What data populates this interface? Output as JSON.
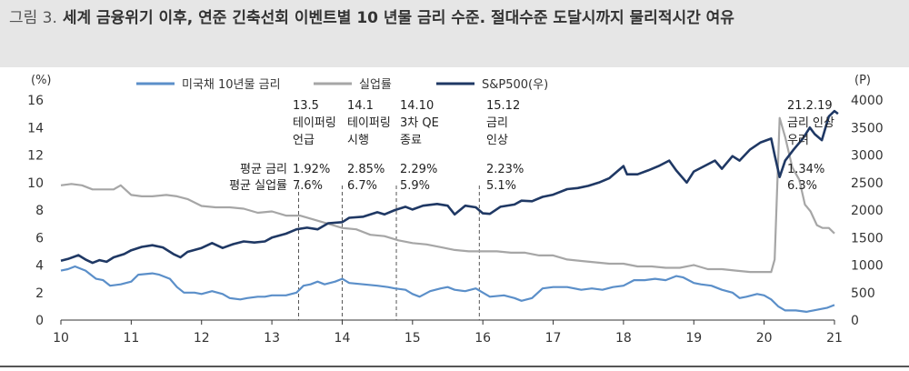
{
  "header": {
    "figure_label": "그림 3.",
    "title": "세계 금융위기 이후, 연준 긴축선회 이벤트별 10 년물 금리 수준. 절대수준 도달시까지 물리적시간 여유"
  },
  "chart_data": {
    "type": "line",
    "title": "",
    "left_axis": {
      "unit": "(%)",
      "min": 0,
      "max": 16,
      "ticks": [
        0,
        2,
        4,
        6,
        8,
        10,
        12,
        14,
        16
      ]
    },
    "right_axis": {
      "unit": "(P)",
      "min": 0,
      "max": 4000,
      "ticks": [
        0,
        500,
        1000,
        1500,
        2000,
        2500,
        3000,
        3500,
        4000
      ]
    },
    "x_axis": {
      "min": 2010,
      "max": 2021,
      "tick_labels": [
        "10",
        "11",
        "12",
        "13",
        "14",
        "15",
        "16",
        "17",
        "18",
        "19",
        "20",
        "21"
      ]
    },
    "legend_position": "top",
    "series": [
      {
        "name": "미국채 10년물 금리",
        "axis": "left",
        "color": "#5b8fc9",
        "points": [
          [
            2010.0,
            3.6
          ],
          [
            2010.1,
            3.7
          ],
          [
            2010.2,
            3.9
          ],
          [
            2010.35,
            3.6
          ],
          [
            2010.5,
            3.0
          ],
          [
            2010.6,
            2.9
          ],
          [
            2010.7,
            2.5
          ],
          [
            2010.85,
            2.6
          ],
          [
            2011.0,
            2.8
          ],
          [
            2011.1,
            3.3
          ],
          [
            2011.3,
            3.4
          ],
          [
            2011.4,
            3.3
          ],
          [
            2011.55,
            3.0
          ],
          [
            2011.65,
            2.4
          ],
          [
            2011.75,
            2.0
          ],
          [
            2011.9,
            2.0
          ],
          [
            2012.0,
            1.9
          ],
          [
            2012.15,
            2.1
          ],
          [
            2012.3,
            1.9
          ],
          [
            2012.4,
            1.6
          ],
          [
            2012.55,
            1.5
          ],
          [
            2012.65,
            1.6
          ],
          [
            2012.8,
            1.7
          ],
          [
            2012.9,
            1.7
          ],
          [
            2013.0,
            1.8
          ],
          [
            2013.2,
            1.8
          ],
          [
            2013.35,
            2.0
          ],
          [
            2013.45,
            2.5
          ],
          [
            2013.55,
            2.6
          ],
          [
            2013.65,
            2.8
          ],
          [
            2013.75,
            2.6
          ],
          [
            2013.9,
            2.8
          ],
          [
            2014.0,
            3.0
          ],
          [
            2014.1,
            2.7
          ],
          [
            2014.3,
            2.6
          ],
          [
            2014.5,
            2.5
          ],
          [
            2014.65,
            2.4
          ],
          [
            2014.75,
            2.3
          ],
          [
            2014.9,
            2.2
          ],
          [
            2015.0,
            1.9
          ],
          [
            2015.1,
            1.7
          ],
          [
            2015.25,
            2.1
          ],
          [
            2015.4,
            2.3
          ],
          [
            2015.5,
            2.4
          ],
          [
            2015.6,
            2.2
          ],
          [
            2015.75,
            2.1
          ],
          [
            2015.9,
            2.3
          ],
          [
            2016.0,
            2.0
          ],
          [
            2016.1,
            1.7
          ],
          [
            2016.3,
            1.8
          ],
          [
            2016.45,
            1.6
          ],
          [
            2016.55,
            1.4
          ],
          [
            2016.7,
            1.6
          ],
          [
            2016.85,
            2.3
          ],
          [
            2017.0,
            2.4
          ],
          [
            2017.2,
            2.4
          ],
          [
            2017.4,
            2.2
          ],
          [
            2017.55,
            2.3
          ],
          [
            2017.7,
            2.2
          ],
          [
            2017.85,
            2.4
          ],
          [
            2018.0,
            2.5
          ],
          [
            2018.15,
            2.9
          ],
          [
            2018.3,
            2.9
          ],
          [
            2018.45,
            3.0
          ],
          [
            2018.6,
            2.9
          ],
          [
            2018.75,
            3.2
          ],
          [
            2018.85,
            3.1
          ],
          [
            2019.0,
            2.7
          ],
          [
            2019.1,
            2.6
          ],
          [
            2019.25,
            2.5
          ],
          [
            2019.4,
            2.2
          ],
          [
            2019.55,
            2.0
          ],
          [
            2019.65,
            1.6
          ],
          [
            2019.75,
            1.7
          ],
          [
            2019.9,
            1.9
          ],
          [
            2020.0,
            1.8
          ],
          [
            2020.1,
            1.5
          ],
          [
            2020.2,
            1.0
          ],
          [
            2020.3,
            0.7
          ],
          [
            2020.45,
            0.7
          ],
          [
            2020.6,
            0.6
          ],
          [
            2020.7,
            0.7
          ],
          [
            2020.8,
            0.8
          ],
          [
            2020.9,
            0.9
          ],
          [
            2021.0,
            1.1
          ]
        ]
      },
      {
        "name": "실업률",
        "axis": "left",
        "color": "#a6a6a6",
        "points": [
          [
            2010.0,
            9.8
          ],
          [
            2010.15,
            9.9
          ],
          [
            2010.3,
            9.8
          ],
          [
            2010.45,
            9.5
          ],
          [
            2010.6,
            9.5
          ],
          [
            2010.75,
            9.5
          ],
          [
            2010.85,
            9.8
          ],
          [
            2011.0,
            9.1
          ],
          [
            2011.15,
            9.0
          ],
          [
            2011.3,
            9.0
          ],
          [
            2011.5,
            9.1
          ],
          [
            2011.65,
            9.0
          ],
          [
            2011.8,
            8.8
          ],
          [
            2012.0,
            8.3
          ],
          [
            2012.2,
            8.2
          ],
          [
            2012.4,
            8.2
          ],
          [
            2012.6,
            8.1
          ],
          [
            2012.8,
            7.8
          ],
          [
            2013.0,
            7.9
          ],
          [
            2013.2,
            7.6
          ],
          [
            2013.4,
            7.6
          ],
          [
            2013.6,
            7.3
          ],
          [
            2013.8,
            7.0
          ],
          [
            2014.0,
            6.7
          ],
          [
            2014.2,
            6.6
          ],
          [
            2014.4,
            6.2
          ],
          [
            2014.6,
            6.1
          ],
          [
            2014.8,
            5.8
          ],
          [
            2015.0,
            5.6
          ],
          [
            2015.2,
            5.5
          ],
          [
            2015.4,
            5.3
          ],
          [
            2015.6,
            5.1
          ],
          [
            2015.8,
            5.0
          ],
          [
            2016.0,
            5.0
          ],
          [
            2016.2,
            5.0
          ],
          [
            2016.4,
            4.9
          ],
          [
            2016.6,
            4.9
          ],
          [
            2016.8,
            4.7
          ],
          [
            2017.0,
            4.7
          ],
          [
            2017.2,
            4.4
          ],
          [
            2017.4,
            4.3
          ],
          [
            2017.6,
            4.2
          ],
          [
            2017.8,
            4.1
          ],
          [
            2018.0,
            4.1
          ],
          [
            2018.2,
            3.9
          ],
          [
            2018.4,
            3.9
          ],
          [
            2018.6,
            3.8
          ],
          [
            2018.8,
            3.8
          ],
          [
            2019.0,
            4.0
          ],
          [
            2019.2,
            3.7
          ],
          [
            2019.4,
            3.7
          ],
          [
            2019.6,
            3.6
          ],
          [
            2019.8,
            3.5
          ],
          [
            2020.0,
            3.5
          ],
          [
            2020.1,
            3.5
          ],
          [
            2020.15,
            4.4
          ],
          [
            2020.22,
            14.7
          ],
          [
            2020.3,
            13.3
          ],
          [
            2020.4,
            11.1
          ],
          [
            2020.5,
            10.2
          ],
          [
            2020.58,
            8.4
          ],
          [
            2020.66,
            7.9
          ],
          [
            2020.75,
            6.9
          ],
          [
            2020.83,
            6.7
          ],
          [
            2020.92,
            6.7
          ],
          [
            2021.0,
            6.3
          ]
        ]
      },
      {
        "name": "S&P500(우)",
        "axis": "right",
        "color": "#1f3864",
        "points": [
          [
            2010.0,
            1080
          ],
          [
            2010.1,
            1110
          ],
          [
            2010.25,
            1180
          ],
          [
            2010.35,
            1100
          ],
          [
            2010.45,
            1040
          ],
          [
            2010.55,
            1090
          ],
          [
            2010.65,
            1060
          ],
          [
            2010.75,
            1140
          ],
          [
            2010.9,
            1200
          ],
          [
            2011.0,
            1270
          ],
          [
            2011.15,
            1330
          ],
          [
            2011.3,
            1360
          ],
          [
            2011.45,
            1320
          ],
          [
            2011.6,
            1200
          ],
          [
            2011.7,
            1140
          ],
          [
            2011.8,
            1240
          ],
          [
            2012.0,
            1310
          ],
          [
            2012.15,
            1400
          ],
          [
            2012.3,
            1310
          ],
          [
            2012.45,
            1380
          ],
          [
            2012.6,
            1430
          ],
          [
            2012.75,
            1410
          ],
          [
            2012.9,
            1430
          ],
          [
            2013.0,
            1500
          ],
          [
            2013.2,
            1570
          ],
          [
            2013.35,
            1650
          ],
          [
            2013.5,
            1680
          ],
          [
            2013.65,
            1650
          ],
          [
            2013.8,
            1760
          ],
          [
            2014.0,
            1780
          ],
          [
            2014.1,
            1860
          ],
          [
            2014.3,
            1880
          ],
          [
            2014.5,
            1960
          ],
          [
            2014.6,
            1920
          ],
          [
            2014.75,
            2000
          ],
          [
            2014.9,
            2060
          ],
          [
            2015.0,
            2010
          ],
          [
            2015.15,
            2080
          ],
          [
            2015.35,
            2110
          ],
          [
            2015.5,
            2080
          ],
          [
            2015.6,
            1920
          ],
          [
            2015.75,
            2080
          ],
          [
            2015.9,
            2050
          ],
          [
            2016.0,
            1940
          ],
          [
            2016.1,
            1930
          ],
          [
            2016.25,
            2060
          ],
          [
            2016.45,
            2100
          ],
          [
            2016.55,
            2170
          ],
          [
            2016.7,
            2160
          ],
          [
            2016.85,
            2240
          ],
          [
            2017.0,
            2280
          ],
          [
            2017.2,
            2380
          ],
          [
            2017.35,
            2400
          ],
          [
            2017.5,
            2440
          ],
          [
            2017.65,
            2500
          ],
          [
            2017.8,
            2580
          ],
          [
            2018.0,
            2800
          ],
          [
            2018.05,
            2650
          ],
          [
            2018.2,
            2650
          ],
          [
            2018.35,
            2720
          ],
          [
            2018.5,
            2800
          ],
          [
            2018.65,
            2900
          ],
          [
            2018.75,
            2720
          ],
          [
            2018.9,
            2500
          ],
          [
            2019.0,
            2700
          ],
          [
            2019.15,
            2800
          ],
          [
            2019.3,
            2900
          ],
          [
            2019.4,
            2750
          ],
          [
            2019.55,
            2980
          ],
          [
            2019.65,
            2900
          ],
          [
            2019.8,
            3100
          ],
          [
            2019.95,
            3230
          ],
          [
            2020.1,
            3300
          ],
          [
            2020.15,
            3000
          ],
          [
            2020.22,
            2600
          ],
          [
            2020.3,
            2900
          ],
          [
            2020.42,
            3100
          ],
          [
            2020.55,
            3300
          ],
          [
            2020.65,
            3500
          ],
          [
            2020.72,
            3380
          ],
          [
            2020.82,
            3270
          ],
          [
            2020.92,
            3700
          ],
          [
            2021.0,
            3800
          ],
          [
            2021.05,
            3750
          ]
        ]
      }
    ],
    "events": [
      {
        "x": 2013.38,
        "date": "13.5",
        "label_lines": [
          "테이퍼링",
          "언급"
        ],
        "avg_rate": "1.92%",
        "avg_unemp": "7.6%"
      },
      {
        "x": 2014.0,
        "date": "14.1",
        "label_lines": [
          "테이퍼링",
          "시행"
        ],
        "avg_rate": "2.85%",
        "avg_unemp": "6.7%"
      },
      {
        "x": 2014.77,
        "date": "14.10",
        "label_lines": [
          "3차 QE",
          "종료"
        ],
        "avg_rate": "2.29%",
        "avg_unemp": "5.9%"
      },
      {
        "x": 2015.95,
        "date": "15.12",
        "label_lines": [
          "금리",
          "인상"
        ],
        "avg_rate": "2.23%",
        "avg_unemp": "5.1%"
      },
      {
        "x": 2021.15,
        "date": "21.2.19",
        "label_lines": [
          "금리 인상",
          "우려"
        ],
        "avg_rate": "1.34%",
        "avg_unemp": "6.3%"
      }
    ],
    "avg_labels": {
      "rate": "평균 금리",
      "unemp": "평균 실업률"
    }
  }
}
